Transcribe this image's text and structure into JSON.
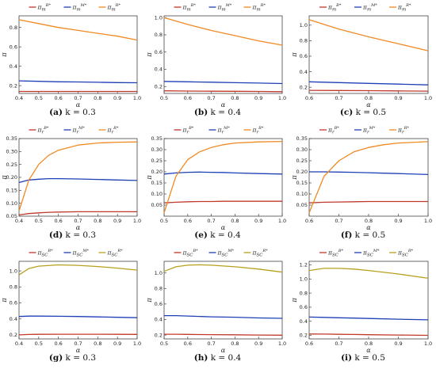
{
  "colors": {
    "B": "#c0392b",
    "M": "#1f3fb5",
    "R_m": "#f08a24",
    "R_r": "#f08a24",
    "R_sc": "#b8a01e"
  },
  "legend_sets": {
    "m": [
      {
        "base": "π",
        "sub": "m",
        "sup": "B*",
        "key": "B"
      },
      {
        "base": "π",
        "sub": "m",
        "sup": "M*",
        "key": "M"
      },
      {
        "base": "π",
        "sub": "m",
        "sup": "R*",
        "key": "R_m"
      }
    ],
    "r": [
      {
        "base": "π",
        "sub": "r",
        "sup": "B*",
        "key": "B"
      },
      {
        "base": "π",
        "sub": "r",
        "sup": "M*",
        "key": "M"
      },
      {
        "base": "π",
        "sub": "r",
        "sup": "R*",
        "key": "R_r"
      }
    ],
    "sc": [
      {
        "base": "π",
        "sub": "SC",
        "sup": "B*",
        "key": "B"
      },
      {
        "base": "π",
        "sub": "SC",
        "sup": "M*",
        "key": "M"
      },
      {
        "base": "π",
        "sub": "SC",
        "sup": "R*",
        "key": "R_sc"
      }
    ]
  },
  "chart_data": [
    {
      "type": "line",
      "panel": "a",
      "caption_label": "(a)",
      "caption_text": "k = 0.3",
      "legend": "m",
      "xlabel": "α",
      "ylabel": "π",
      "xlim": [
        0.4,
        1.0
      ],
      "ylim": [
        0.12,
        0.92
      ],
      "xticks": [
        "0.4",
        "0.5",
        "0.6",
        "0.7",
        "0.8",
        "0.9",
        "1.0"
      ],
      "yticks": [
        "0.2",
        "0.4",
        "0.6",
        "0.8"
      ],
      "x": [
        0.4,
        0.5,
        0.6,
        0.7,
        0.8,
        0.9,
        1.0
      ],
      "series": [
        {
          "key": "B",
          "values": [
            0.14,
            0.14,
            0.14,
            0.14,
            0.14,
            0.14,
            0.14
          ]
        },
        {
          "key": "M",
          "values": [
            0.25,
            0.245,
            0.24,
            0.238,
            0.235,
            0.232,
            0.23
          ]
        },
        {
          "key": "R_m",
          "values": [
            0.88,
            0.84,
            0.8,
            0.77,
            0.74,
            0.71,
            0.67
          ]
        }
      ]
    },
    {
      "type": "line",
      "panel": "b",
      "caption_label": "(b)",
      "caption_text": "k = 0.4",
      "legend": "m",
      "xlabel": "α",
      "ylabel": "π",
      "xlim": [
        0.5,
        1.0
      ],
      "ylim": [
        0.12,
        1.02
      ],
      "xticks": [
        "0.5",
        "0.6",
        "0.7",
        "0.8",
        "0.9",
        "1.0"
      ],
      "yticks": [
        "0.2",
        "0.4",
        "0.6",
        "0.8",
        "1.0"
      ],
      "x": [
        0.5,
        0.6,
        0.7,
        0.8,
        0.9,
        1.0
      ],
      "series": [
        {
          "key": "B",
          "values": [
            0.15,
            0.148,
            0.146,
            0.145,
            0.143,
            0.14
          ]
        },
        {
          "key": "M",
          "values": [
            0.26,
            0.255,
            0.25,
            0.245,
            0.24,
            0.235
          ]
        },
        {
          "key": "R_m",
          "values": [
            1.0,
            0.92,
            0.85,
            0.79,
            0.73,
            0.68
          ]
        }
      ]
    },
    {
      "type": "line",
      "panel": "c",
      "caption_label": "(c)",
      "caption_text": "k = 0.5",
      "legend": "m",
      "xlabel": "α",
      "ylabel": "π",
      "xlim": [
        0.6,
        1.0
      ],
      "ylim": [
        0.12,
        1.12
      ],
      "xticks": [
        "0.6",
        "0.7",
        "0.8",
        "0.9",
        "1.0"
      ],
      "yticks": [
        "0.2",
        "0.4",
        "0.6",
        "0.8",
        "1.0"
      ],
      "x": [
        0.6,
        0.7,
        0.8,
        0.9,
        1.0
      ],
      "series": [
        {
          "key": "B",
          "values": [
            0.16,
            0.158,
            0.156,
            0.153,
            0.15
          ]
        },
        {
          "key": "M",
          "values": [
            0.27,
            0.26,
            0.25,
            0.24,
            0.23
          ]
        },
        {
          "key": "R_m",
          "values": [
            1.07,
            0.95,
            0.85,
            0.76,
            0.67
          ]
        }
      ]
    },
    {
      "type": "line",
      "panel": "d",
      "caption_label": "(d)",
      "caption_text": "k = 0.3",
      "legend": "r",
      "xlabel": "α",
      "ylabel": "π",
      "xlim": [
        0.4,
        1.0
      ],
      "ylim": [
        0.05,
        0.35
      ],
      "xticks": [
        "0.4",
        "0.5",
        "0.6",
        "0.7",
        "0.8",
        "0.9",
        "1.0"
      ],
      "yticks": [
        "0.05",
        "0.10",
        "0.15",
        "0.20",
        "0.25",
        "0.30",
        "0.35"
      ],
      "x": [
        0.4,
        0.45,
        0.5,
        0.55,
        0.6,
        0.7,
        0.8,
        0.9,
        1.0
      ],
      "series": [
        {
          "key": "B",
          "values": [
            0.055,
            0.06,
            0.063,
            0.065,
            0.066,
            0.067,
            0.067,
            0.067,
            0.067
          ]
        },
        {
          "key": "M",
          "values": [
            0.18,
            0.19,
            0.193,
            0.195,
            0.195,
            0.194,
            0.192,
            0.19,
            0.188
          ]
        },
        {
          "key": "R_r",
          "values": [
            0.07,
            0.19,
            0.25,
            0.285,
            0.305,
            0.325,
            0.333,
            0.336,
            0.337
          ]
        }
      ]
    },
    {
      "type": "line",
      "panel": "e",
      "caption_label": "(e)",
      "caption_text": "k = 0.4",
      "legend": "r",
      "xlabel": "α",
      "ylabel": "π",
      "xlim": [
        0.5,
        1.0
      ],
      "ylim": [
        0.0,
        0.35
      ],
      "xticks": [
        "0.5",
        "0.6",
        "0.7",
        "0.8",
        "0.9",
        "1.0"
      ],
      "yticks": [
        "0.05",
        "0.10",
        "0.15",
        "0.20",
        "0.25",
        "0.30",
        "0.35"
      ],
      "x": [
        0.5,
        0.55,
        0.6,
        0.65,
        0.7,
        0.75,
        0.8,
        0.9,
        1.0
      ],
      "series": [
        {
          "key": "B",
          "values": [
            0.06,
            0.063,
            0.065,
            0.066,
            0.066,
            0.067,
            0.067,
            0.067,
            0.067
          ]
        },
        {
          "key": "M",
          "values": [
            0.19,
            0.195,
            0.198,
            0.199,
            0.198,
            0.197,
            0.195,
            0.192,
            0.19
          ]
        },
        {
          "key": "R_r",
          "values": [
            0.015,
            0.18,
            0.255,
            0.29,
            0.31,
            0.322,
            0.33,
            0.335,
            0.337
          ]
        }
      ]
    },
    {
      "type": "line",
      "panel": "f",
      "caption_label": "(f)",
      "caption_text": "k = 0.5",
      "legend": "r",
      "xlabel": "α",
      "ylabel": "π",
      "xlim": [
        0.6,
        1.0
      ],
      "ylim": [
        0.0,
        0.35
      ],
      "xticks": [
        "0.6",
        "0.7",
        "0.8",
        "0.9",
        "1.0"
      ],
      "yticks": [
        "0.05",
        "0.10",
        "0.15",
        "0.20",
        "0.25",
        "0.30",
        "0.35"
      ],
      "x": [
        0.6,
        0.65,
        0.7,
        0.75,
        0.8,
        0.85,
        0.9,
        1.0
      ],
      "series": [
        {
          "key": "B",
          "values": [
            0.06,
            0.063,
            0.064,
            0.065,
            0.066,
            0.066,
            0.066,
            0.066
          ]
        },
        {
          "key": "M",
          "values": [
            0.2,
            0.2,
            0.199,
            0.198,
            0.196,
            0.194,
            0.192,
            0.188
          ]
        },
        {
          "key": "R_r",
          "values": [
            0.015,
            0.18,
            0.25,
            0.29,
            0.31,
            0.322,
            0.33,
            0.336
          ]
        }
      ]
    },
    {
      "type": "line",
      "panel": "g",
      "caption_label": "(g)",
      "caption_text": "k = 0.3",
      "legend": "sc",
      "xlabel": "α",
      "ylabel": "π",
      "xlim": [
        0.4,
        1.0
      ],
      "ylim": [
        0.15,
        1.12
      ],
      "xticks": [
        "0.4",
        "0.5",
        "0.6",
        "0.7",
        "0.8",
        "0.9",
        "1.0"
      ],
      "yticks": [
        "0.2",
        "0.4",
        "0.6",
        "0.8",
        "1.0"
      ],
      "x": [
        0.4,
        0.45,
        0.5,
        0.6,
        0.7,
        0.8,
        0.9,
        1.0
      ],
      "series": [
        {
          "key": "B",
          "values": [
            0.2,
            0.205,
            0.207,
            0.208,
            0.208,
            0.208,
            0.207,
            0.206
          ]
        },
        {
          "key": "M",
          "values": [
            0.43,
            0.435,
            0.435,
            0.433,
            0.43,
            0.425,
            0.42,
            0.415
          ]
        },
        {
          "key": "R_sc",
          "values": [
            0.95,
            1.03,
            1.06,
            1.075,
            1.07,
            1.055,
            1.035,
            1.01
          ]
        }
      ]
    },
    {
      "type": "line",
      "panel": "h",
      "caption_label": "(h)",
      "caption_text": "k = 0.4",
      "legend": "sc",
      "xlabel": "α",
      "ylabel": "π",
      "xlim": [
        0.5,
        1.0
      ],
      "ylim": [
        0.15,
        1.15
      ],
      "xticks": [
        "0.5",
        "0.6",
        "0.7",
        "0.8",
        "0.9",
        "1.0"
      ],
      "yticks": [
        "0.2",
        "0.4",
        "0.6",
        "0.8",
        "1.0"
      ],
      "x": [
        0.5,
        0.55,
        0.6,
        0.65,
        0.7,
        0.8,
        0.9,
        1.0
      ],
      "series": [
        {
          "key": "B",
          "values": [
            0.21,
            0.21,
            0.208,
            0.206,
            0.205,
            0.203,
            0.2,
            0.198
          ]
        },
        {
          "key": "M",
          "values": [
            0.45,
            0.45,
            0.445,
            0.44,
            0.435,
            0.43,
            0.42,
            0.415
          ]
        },
        {
          "key": "R_sc",
          "values": [
            1.02,
            1.08,
            1.1,
            1.105,
            1.1,
            1.08,
            1.05,
            1.01
          ]
        }
      ]
    },
    {
      "type": "line",
      "panel": "i",
      "caption_label": "(i)",
      "caption_text": "k = 0.5",
      "legend": "sc",
      "xlabel": "α",
      "ylabel": "π",
      "xlim": [
        0.6,
        1.0
      ],
      "ylim": [
        0.15,
        1.25
      ],
      "xticks": [
        "0.6",
        "0.7",
        "0.8",
        "0.9",
        "1.0"
      ],
      "yticks": [
        "0.2",
        "0.4",
        "0.6",
        "0.8",
        "1.0",
        "1.2"
      ],
      "x": [
        0.6,
        0.65,
        0.7,
        0.75,
        0.8,
        0.9,
        1.0
      ],
      "series": [
        {
          "key": "B",
          "values": [
            0.22,
            0.218,
            0.215,
            0.213,
            0.21,
            0.205,
            0.2
          ]
        },
        {
          "key": "M",
          "values": [
            0.46,
            0.455,
            0.45,
            0.445,
            0.44,
            0.43,
            0.42
          ]
        },
        {
          "key": "R_sc",
          "values": [
            1.12,
            1.15,
            1.15,
            1.14,
            1.12,
            1.07,
            1.01
          ]
        }
      ]
    }
  ]
}
